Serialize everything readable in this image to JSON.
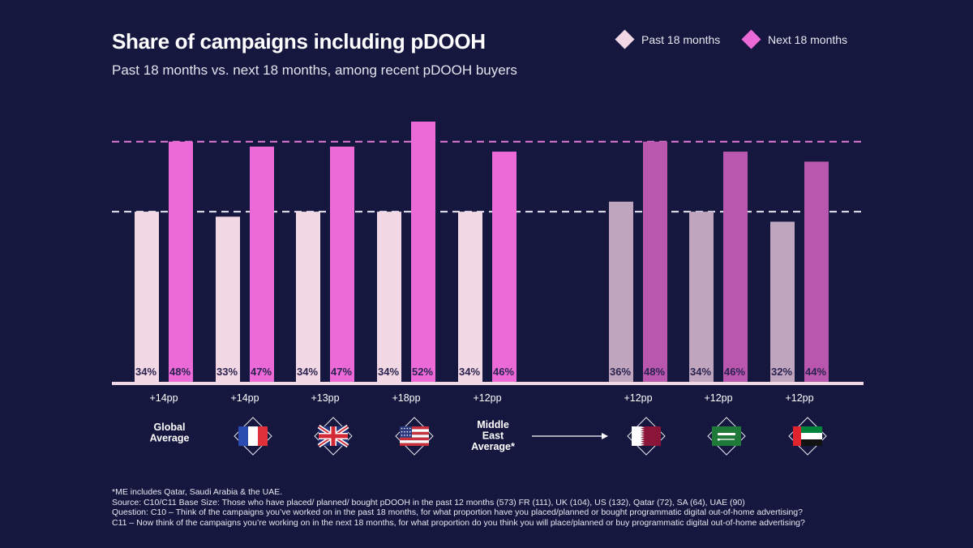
{
  "chart_data": {
    "type": "bar",
    "title": "Share of campaigns including pDOOH",
    "subtitle": "Past 18 months vs. next 18 months, among recent pDOOH buyers",
    "categories": [
      "Global Average",
      "FR",
      "UK",
      "US",
      "Middle East Average*",
      "Qatar",
      "SA",
      "UAE"
    ],
    "category_labels": [
      "Global\nAverage",
      "",
      "",
      "",
      "Middle\nEast\nAverage*",
      "",
      "",
      ""
    ],
    "flag_icons": [
      "",
      "france-flag-icon",
      "uk-flag-icon",
      "us-flag-icon",
      "",
      "qatar-flag-icon",
      "saudi-arabia-flag-icon",
      "uae-flag-icon"
    ],
    "series": [
      {
        "name": "Past 18 months",
        "values": [
          34,
          33,
          34,
          34,
          34,
          36,
          34,
          32
        ]
      },
      {
        "name": "Next 18 months",
        "values": [
          48,
          47,
          47,
          52,
          46,
          48,
          46,
          44
        ]
      }
    ],
    "value_labels": [
      [
        "34%",
        "33%",
        "34%",
        "34%",
        "34%",
        "36%",
        "34%",
        "32%"
      ],
      [
        "48%",
        "47%",
        "47%",
        "52%",
        "46%",
        "48%",
        "46%",
        "44%"
      ]
    ],
    "differences": [
      "+14pp",
      "+14pp",
      "+13pp",
      "+18pp",
      "+12pp",
      "+12pp",
      "+12pp",
      "+12pp"
    ],
    "reference_lines": [
      {
        "value": 34,
        "color": "#e8e4f0",
        "style": "dashed"
      },
      {
        "value": 48,
        "color": "#e47ad8",
        "style": "dashed"
      }
    ],
    "ylim": [
      0,
      52
    ],
    "grid": false,
    "legend_position": "top-right",
    "colors": {
      "past": "#f2d8e4",
      "next": "#ec6ad8",
      "past_me": "#bfa6be",
      "next_me": "#b857ad",
      "baseline": "#f2d8e4"
    }
  },
  "legend": [
    {
      "label": "Past 18 months",
      "color": "#f2d8e4"
    },
    {
      "label": "Next 18 months",
      "color": "#ec6ad8"
    }
  ],
  "footnotes": [
    "*ME includes Qatar, Saudi Arabia & the UAE.",
    "Source: C10/C11 Base Size: Those who have placed/ planned/ bought pDOOH in the past 12 months (573) FR (111), UK (104), US (132), Qatar (72), SA (64), UAE (90)",
    "Question: C10 – Think of the campaigns you’ve worked on in the past 18 months, for what proportion have you placed/planned or bought programmatic digital out-of-home advertising?",
    "C11 – Now think of the campaigns you’re working on in the next 18 months, for what proportion do you think you will place/planned or buy programmatic digital out-of-home advertising?"
  ]
}
